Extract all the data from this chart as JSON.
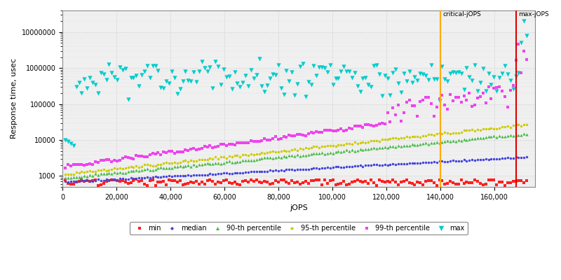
{
  "xlabel": "jOPS",
  "ylabel": "Response time, usec",
  "xlim": [
    0,
    175000
  ],
  "ylim": [
    500,
    40000000
  ],
  "critical_jops": 140000,
  "max_jops": 168000,
  "background_color": "#ffffff",
  "plot_bg_color": "#f0f0f0",
  "grid_color": "#cccccc",
  "critical_line_color": "#ffaa00",
  "max_line_color": "#dd0000",
  "series": {
    "min": {
      "color": "#ff2020",
      "marker": "s",
      "ms": 2.5,
      "label": "min"
    },
    "median": {
      "color": "#4444dd",
      "marker": "o",
      "ms": 2.5,
      "label": "median"
    },
    "p90": {
      "color": "#44bb44",
      "marker": "^",
      "ms": 3.0,
      "label": "90-th percentile"
    },
    "p95": {
      "color": "#cccc00",
      "marker": "o",
      "ms": 2.5,
      "label": "95-th percentile"
    },
    "p99": {
      "color": "#ee44ee",
      "marker": "s",
      "ms": 2.5,
      "label": "99-th percentile"
    },
    "max": {
      "color": "#00cccc",
      "marker": "v",
      "ms": 4.5,
      "label": "max"
    }
  },
  "xtick_values": [
    0,
    20000,
    40000,
    60000,
    80000,
    100000,
    120000,
    140000,
    160000
  ],
  "xtick_labels": [
    "0",
    "20,000",
    "40,000",
    "60,000",
    "80,000",
    "100,000",
    "120,000",
    "140,000",
    "160,000"
  ],
  "ytick_values": [
    1000,
    10000,
    100000,
    1000000,
    10000000
  ],
  "ytick_labels": [
    "1000",
    "10000",
    "100000",
    "1000000",
    "10000000"
  ]
}
